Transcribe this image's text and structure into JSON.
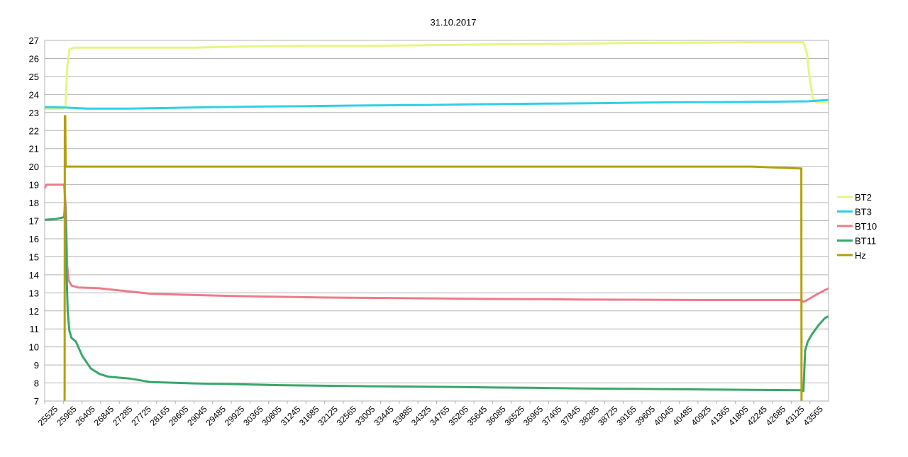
{
  "chart_data": {
    "type": "line",
    "title": "31.10.2017",
    "xlabel": "",
    "ylabel": "",
    "xlim": [
      25525,
      43785
    ],
    "ylim": [
      7,
      27
    ],
    "grid": true,
    "legend_position": "right",
    "y_ticks": [
      7,
      8,
      9,
      10,
      11,
      12,
      13,
      14,
      15,
      16,
      17,
      18,
      19,
      20,
      21,
      22,
      23,
      24,
      25,
      26,
      27
    ],
    "x_ticks": [
      "25525",
      "25965",
      "26405",
      "26845",
      "27285",
      "27725",
      "28165",
      "28605",
      "29045",
      "29485",
      "29925",
      "30365",
      "30805",
      "31245",
      "31685",
      "32125",
      "32565",
      "33005",
      "33445",
      "33885",
      "34325",
      "34765",
      "35205",
      "35645",
      "36085",
      "36525",
      "36965",
      "37405",
      "37845",
      "38285",
      "38725",
      "39165",
      "39605",
      "40045",
      "40485",
      "40925",
      "41365",
      "41805",
      "42245",
      "42685",
      "43125",
      "43565"
    ],
    "series": [
      {
        "name": "BT2",
        "color": "#e6f582",
        "points": [
          [
            25525,
            23.2
          ],
          [
            25960,
            23.2
          ],
          [
            26010,
            23.4
          ],
          [
            26050,
            25.5
          ],
          [
            26100,
            26.5
          ],
          [
            26200,
            26.6
          ],
          [
            27000,
            26.6
          ],
          [
            28000,
            26.6
          ],
          [
            29000,
            26.6
          ],
          [
            30000,
            26.65
          ],
          [
            31000,
            26.68
          ],
          [
            32000,
            26.7
          ],
          [
            33000,
            26.7
          ],
          [
            34000,
            26.72
          ],
          [
            35000,
            26.75
          ],
          [
            36000,
            26.78
          ],
          [
            37000,
            26.8
          ],
          [
            38000,
            26.82
          ],
          [
            39000,
            26.85
          ],
          [
            40000,
            26.87
          ],
          [
            41000,
            26.88
          ],
          [
            42000,
            26.9
          ],
          [
            43200,
            26.9
          ],
          [
            43280,
            26.3
          ],
          [
            43350,
            24.8
          ],
          [
            43420,
            23.8
          ],
          [
            43500,
            23.55
          ],
          [
            43785,
            23.55
          ]
        ]
      },
      {
        "name": "BT3",
        "color": "#2fcfe8",
        "points": [
          [
            25525,
            23.3
          ],
          [
            26000,
            23.28
          ],
          [
            26500,
            23.22
          ],
          [
            27500,
            23.22
          ],
          [
            28500,
            23.26
          ],
          [
            29500,
            23.3
          ],
          [
            30500,
            23.33
          ],
          [
            31500,
            23.35
          ],
          [
            32500,
            23.38
          ],
          [
            33500,
            23.4
          ],
          [
            34500,
            23.42
          ],
          [
            35500,
            23.45
          ],
          [
            36500,
            23.48
          ],
          [
            37500,
            23.5
          ],
          [
            38500,
            23.52
          ],
          [
            39500,
            23.55
          ],
          [
            40500,
            23.57
          ],
          [
            41500,
            23.58
          ],
          [
            42500,
            23.6
          ],
          [
            43300,
            23.62
          ],
          [
            43785,
            23.7
          ]
        ]
      },
      {
        "name": "BT10",
        "color": "#ee7b8a",
        "points": [
          [
            25525,
            18.8
          ],
          [
            25570,
            19.0
          ],
          [
            25980,
            19.0
          ],
          [
            26020,
            17.5
          ],
          [
            26050,
            14.5
          ],
          [
            26080,
            13.7
          ],
          [
            26150,
            13.4
          ],
          [
            26300,
            13.3
          ],
          [
            26800,
            13.25
          ],
          [
            27200,
            13.15
          ],
          [
            27600,
            13.05
          ],
          [
            28000,
            12.95
          ],
          [
            29000,
            12.88
          ],
          [
            30000,
            12.82
          ],
          [
            31000,
            12.78
          ],
          [
            32000,
            12.74
          ],
          [
            33000,
            12.72
          ],
          [
            34000,
            12.7
          ],
          [
            35000,
            12.68
          ],
          [
            36000,
            12.66
          ],
          [
            37000,
            12.65
          ],
          [
            38000,
            12.63
          ],
          [
            39000,
            12.62
          ],
          [
            40000,
            12.61
          ],
          [
            41000,
            12.6
          ],
          [
            42000,
            12.6
          ],
          [
            43150,
            12.6
          ],
          [
            43200,
            12.5
          ],
          [
            43300,
            12.62
          ],
          [
            43500,
            12.9
          ],
          [
            43700,
            13.15
          ],
          [
            43785,
            13.25
          ]
        ]
      },
      {
        "name": "BT11",
        "color": "#3aa66a",
        "points": [
          [
            25525,
            17.05
          ],
          [
            25800,
            17.1
          ],
          [
            25980,
            17.2
          ],
          [
            26000,
            18.0
          ],
          [
            26030,
            14.5
          ],
          [
            26060,
            12.0
          ],
          [
            26100,
            10.9
          ],
          [
            26150,
            10.5
          ],
          [
            26250,
            10.3
          ],
          [
            26400,
            9.5
          ],
          [
            26600,
            8.8
          ],
          [
            26800,
            8.5
          ],
          [
            27000,
            8.35
          ],
          [
            27500,
            8.25
          ],
          [
            28000,
            8.05
          ],
          [
            29000,
            7.98
          ],
          [
            30000,
            7.93
          ],
          [
            31000,
            7.88
          ],
          [
            32000,
            7.85
          ],
          [
            33000,
            7.82
          ],
          [
            34000,
            7.8
          ],
          [
            35000,
            7.78
          ],
          [
            36000,
            7.75
          ],
          [
            37000,
            7.73
          ],
          [
            38000,
            7.7
          ],
          [
            39000,
            7.68
          ],
          [
            40000,
            7.66
          ],
          [
            41000,
            7.64
          ],
          [
            42000,
            7.62
          ],
          [
            43150,
            7.6
          ],
          [
            43200,
            7.55
          ],
          [
            43240,
            9.8
          ],
          [
            43300,
            10.3
          ],
          [
            43400,
            10.7
          ],
          [
            43550,
            11.2
          ],
          [
            43700,
            11.6
          ],
          [
            43785,
            11.7
          ]
        ]
      },
      {
        "name": "Hz",
        "color": "#b5a000",
        "points": [
          [
            25990,
            7.0
          ],
          [
            25995,
            22.8
          ],
          [
            26005,
            22.8
          ],
          [
            26012,
            20.0
          ],
          [
            27000,
            20.0
          ],
          [
            28000,
            20.0
          ],
          [
            29000,
            20.0
          ],
          [
            30000,
            20.0
          ],
          [
            31000,
            20.0
          ],
          [
            32000,
            20.0
          ],
          [
            33000,
            20.0
          ],
          [
            34000,
            20.0
          ],
          [
            35000,
            20.0
          ],
          [
            36000,
            20.0
          ],
          [
            37000,
            20.0
          ],
          [
            38000,
            20.0
          ],
          [
            39000,
            20.0
          ],
          [
            40000,
            20.0
          ],
          [
            41000,
            20.0
          ],
          [
            42000,
            20.0
          ],
          [
            43120,
            19.9
          ],
          [
            43150,
            19.9
          ],
          [
            43155,
            7.0
          ]
        ]
      }
    ]
  }
}
